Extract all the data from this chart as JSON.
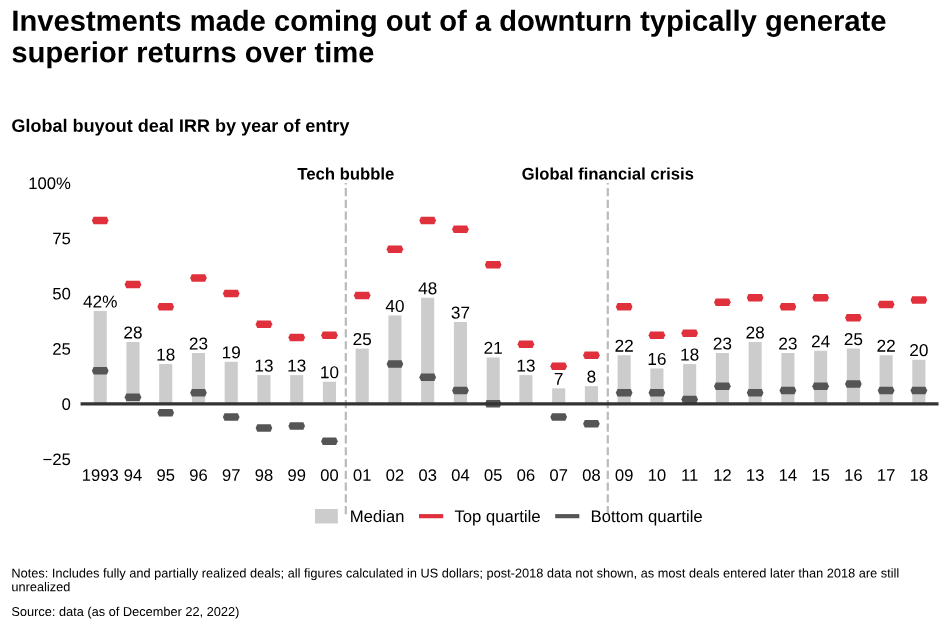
{
  "chart_data": {
    "type": "bar",
    "title": "Investments made coming out of a downturn typically generate superior returns over time",
    "subtitle": "Global buyout deal IRR by year of entry",
    "categories": [
      "1993",
      "94",
      "95",
      "96",
      "97",
      "98",
      "99",
      "00",
      "01",
      "02",
      "03",
      "04",
      "05",
      "06",
      "07",
      "08",
      "09",
      "10",
      "11",
      "12",
      "13",
      "14",
      "15",
      "16",
      "17",
      "18"
    ],
    "series": [
      {
        "name": "Median",
        "color": "#cccccc",
        "values": [
          42,
          28,
          18,
          23,
          19,
          13,
          13,
          10,
          25,
          40,
          48,
          37,
          21,
          13,
          7,
          8,
          22,
          16,
          18,
          23,
          28,
          23,
          24,
          25,
          22,
          20
        ],
        "value_labels": [
          "42%",
          "28",
          "18",
          "23",
          "19",
          "13",
          "13",
          "10",
          "25",
          "40",
          "48",
          "37",
          "21",
          "13",
          "7",
          "8",
          "22",
          "16",
          "18",
          "23",
          "28",
          "23",
          "24",
          "25",
          "22",
          "20"
        ]
      },
      {
        "name": "Top quartile",
        "type": "scatter",
        "color": "#e0303c",
        "values": [
          83,
          54,
          44,
          57,
          50,
          36,
          30,
          31,
          49,
          70,
          83,
          79,
          63,
          27,
          17,
          22,
          44,
          31,
          32,
          46,
          48,
          44,
          48,
          39,
          45,
          47
        ]
      },
      {
        "name": "Bottom quartile",
        "type": "scatter",
        "color": "#555555",
        "values": [
          15,
          3,
          -4,
          5,
          -6,
          -11,
          -10,
          -17,
          null,
          18,
          12,
          6,
          0,
          null,
          -6,
          -9,
          5,
          5,
          2,
          8,
          5,
          6,
          8,
          9,
          6,
          6
        ]
      }
    ],
    "ylim": [
      -25,
      100
    ],
    "yticks": [
      {
        "value": 100,
        "label": "100%"
      },
      75,
      50,
      25,
      0,
      {
        "value": -25,
        "label": "−25"
      }
    ],
    "grid": false,
    "legend": "bottom",
    "annotations": [
      "Tech bubble",
      "Global financial crisis",
      "Notes: Includes fully and partially realized deals; all figures calculated in US dollars; post-2018 data not shown, as most deals entered later than 2018 are still unrealized",
      "Source: data (as of December 22, 2022)"
    ]
  }
}
